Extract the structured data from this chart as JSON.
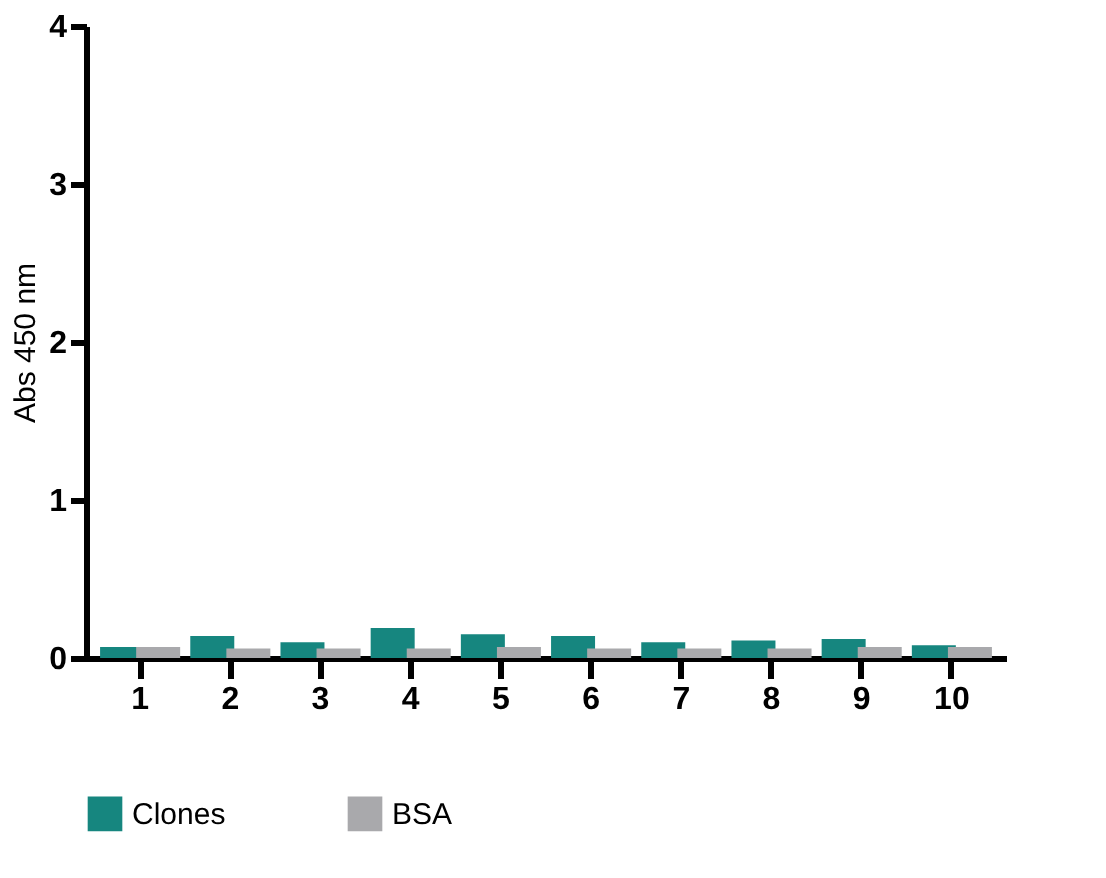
{
  "chart_data": {
    "type": "bar",
    "ylabel": "Abs 450 nm",
    "categories": [
      "1",
      "2",
      "3",
      "4",
      "5",
      "6",
      "7",
      "8",
      "9",
      "10"
    ],
    "series": [
      {
        "name": "Clones",
        "color": "#16867f",
        "values": [
          0.07,
          0.14,
          0.1,
          0.19,
          0.15,
          0.14,
          0.1,
          0.11,
          0.12,
          0.08
        ]
      },
      {
        "name": "BSA",
        "color": "#a9a9ac",
        "values": [
          0.07,
          0.06,
          0.06,
          0.06,
          0.07,
          0.06,
          0.06,
          0.06,
          0.07,
          0.07
        ]
      }
    ],
    "ylim": [
      0,
      4
    ],
    "yticks": [
      0,
      1,
      2,
      3,
      4
    ],
    "grid": false,
    "legend": "bottom"
  }
}
